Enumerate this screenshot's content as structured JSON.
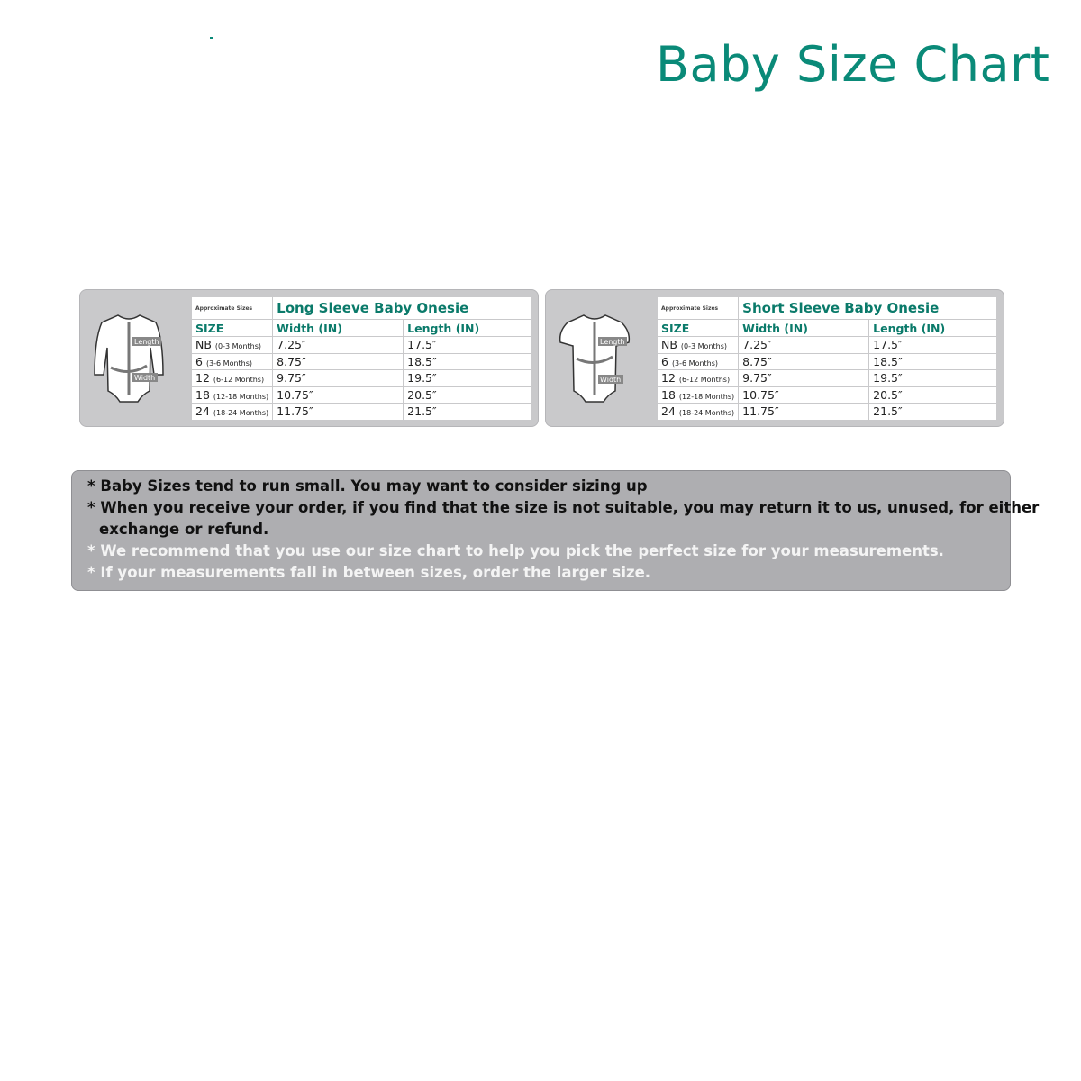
{
  "title": "Baby Size Chart",
  "charts": [
    {
      "product": "Long Sleeve Baby Onesie",
      "approx_label": "Approximate Sizes",
      "headers": [
        "SIZE",
        "Width (IN)",
        "Length (IN)"
      ],
      "diagram_labels": [
        "Length",
        "Width"
      ],
      "rows": [
        {
          "size": "NB",
          "months": "(0-3 Months)",
          "width": "7.25″",
          "length": "17.5″"
        },
        {
          "size": "6",
          "months": "(3-6 Months)",
          "width": "8.75″",
          "length": "18.5″"
        },
        {
          "size": "12",
          "months": "(6-12 Months)",
          "width": "9.75″",
          "length": "19.5″"
        },
        {
          "size": "18",
          "months": "(12-18 Months)",
          "width": "10.75″",
          "length": "20.5″"
        },
        {
          "size": "24",
          "months": "(18-24 Months)",
          "width": "11.75″",
          "length": "21.5″"
        }
      ]
    },
    {
      "product": "Short Sleeve Baby Onesie",
      "approx_label": "Approximate Sizes",
      "headers": [
        "SIZE",
        "Width (IN)",
        "Length (IN)"
      ],
      "diagram_labels": [
        "Length",
        "Width"
      ],
      "rows": [
        {
          "size": "NB",
          "months": "(0-3 Months)",
          "width": "7.25″",
          "length": "17.5″"
        },
        {
          "size": "6",
          "months": "(3-6 Months)",
          "width": "8.75″",
          "length": "18.5″"
        },
        {
          "size": "12",
          "months": "(6-12 Months)",
          "width": "9.75″",
          "length": "19.5″"
        },
        {
          "size": "18",
          "months": "(12-18 Months)",
          "width": "10.75″",
          "length": "20.5″"
        },
        {
          "size": "24",
          "months": "(18-24 Months)",
          "width": "11.75″",
          "length": "21.5″"
        }
      ]
    }
  ],
  "notes": [
    "* Baby Sizes tend to run small.  You may want to consider sizing up",
    "* When you receive your order, if you find that the size is not suitable, you may return it to us, unused, for either",
    "exchange or refund.",
    "* We recommend that you use our size chart to help you pick the perfect size for your measurements.",
    "* If your measurements fall in between sizes, order the larger size."
  ],
  "colors": {
    "accent": "#0a8a78",
    "panel": "#c9c9cb",
    "notes_bg": "#aeaeb1"
  }
}
